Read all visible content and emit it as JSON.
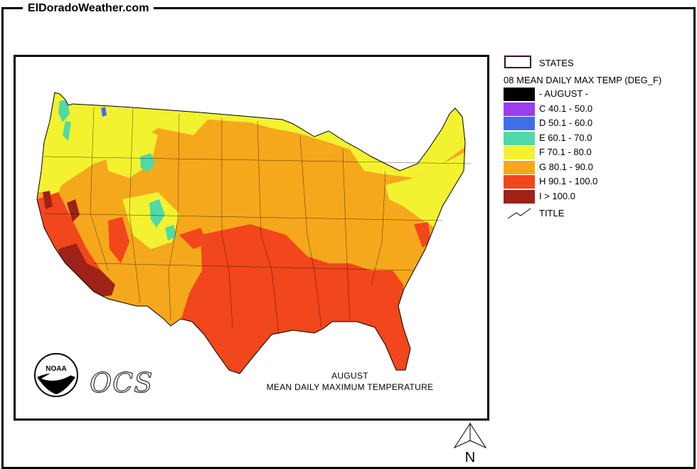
{
  "header": {
    "site_title": "ElDoradoWeather.com"
  },
  "map": {
    "caption_line1": "AUGUST",
    "caption_line2": "MEAN DAILY MAXIMUM TEMPERATURE",
    "agency_logo_text": "NOAA",
    "office_logo_text": "OCS"
  },
  "legend": {
    "states_label": "STATES",
    "title": "08 MEAN DAILY MAX TEMP (DEG_F)",
    "classes": [
      {
        "label": "- AUGUST -",
        "color": "#000000"
      },
      {
        "label": "C 40.1 - 50.0",
        "color": "#9B3DF0"
      },
      {
        "label": "D 50.1 - 60.0",
        "color": "#3F6FE8"
      },
      {
        "label": "E 60.1 - 70.0",
        "color": "#4FD9A8"
      },
      {
        "label": "F 70.1 - 80.0",
        "color": "#F2F230"
      },
      {
        "label": "G 80.1 - 90.0",
        "color": "#F5A81C"
      },
      {
        "label": "H 90.1 - 100.0",
        "color": "#F2461C"
      },
      {
        "label": "I > 100.0",
        "color": "#9E2218"
      }
    ],
    "title_symbol_label": "TITLE"
  },
  "compass": {
    "label": "N"
  }
}
